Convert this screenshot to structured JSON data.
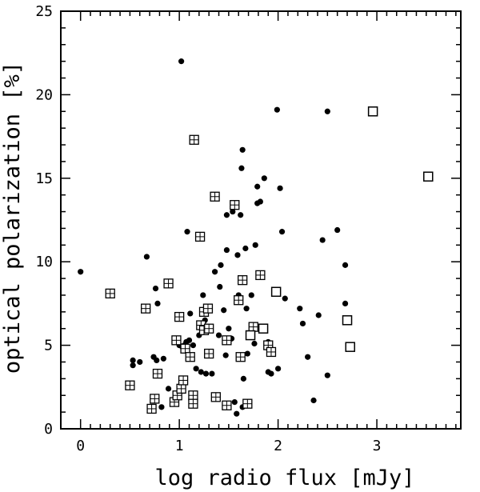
{
  "chart_data": {
    "type": "scatter",
    "title": "",
    "xlabel": "log radio flux [mJy]",
    "ylabel": "optical polarization [%]",
    "xlim": [
      -0.2,
      3.85
    ],
    "ylim": [
      0,
      25
    ],
    "xticks": [
      0,
      1,
      2,
      3
    ],
    "yticks": [
      0,
      5,
      10,
      15,
      20,
      25
    ],
    "grid": false,
    "legend": "none",
    "series": [
      {
        "marker": "filled-circle",
        "color": "#000000",
        "points": [
          [
            0.0,
            9.4
          ],
          [
            0.53,
            4.1
          ],
          [
            0.53,
            3.8
          ],
          [
            0.6,
            4.0
          ],
          [
            0.67,
            10.3
          ],
          [
            0.74,
            4.3
          ],
          [
            0.76,
            8.4
          ],
          [
            0.77,
            4.1
          ],
          [
            0.78,
            7.5
          ],
          [
            0.82,
            1.3
          ],
          [
            0.84,
            4.2
          ],
          [
            0.89,
            2.4
          ],
          [
            0.97,
            1.5
          ],
          [
            1.0,
            5.0
          ],
          [
            1.02,
            22.0
          ],
          [
            1.03,
            4.9
          ],
          [
            1.05,
            5.0
          ],
          [
            1.07,
            5.2
          ],
          [
            1.08,
            11.8
          ],
          [
            1.1,
            5.3
          ],
          [
            1.11,
            6.9
          ],
          [
            1.14,
            5.0
          ],
          [
            1.17,
            3.6
          ],
          [
            1.2,
            5.6
          ],
          [
            1.22,
            3.4
          ],
          [
            1.24,
            8.0
          ],
          [
            1.26,
            6.5
          ],
          [
            1.27,
            3.3
          ],
          [
            1.29,
            6.1
          ],
          [
            1.31,
            4.6
          ],
          [
            1.33,
            3.3
          ],
          [
            1.36,
            9.4
          ],
          [
            1.4,
            5.6
          ],
          [
            1.41,
            8.5
          ],
          [
            1.42,
            9.8
          ],
          [
            1.45,
            7.1
          ],
          [
            1.47,
            4.4
          ],
          [
            1.48,
            10.7
          ],
          [
            1.48,
            12.8
          ],
          [
            1.5,
            6.0
          ],
          [
            1.53,
            5.4
          ],
          [
            1.54,
            13.0
          ],
          [
            1.56,
            1.6
          ],
          [
            1.58,
            0.9
          ],
          [
            1.59,
            10.4
          ],
          [
            1.6,
            8.0
          ],
          [
            1.62,
            12.8
          ],
          [
            1.63,
            15.6
          ],
          [
            1.64,
            16.7
          ],
          [
            1.64,
            1.3
          ],
          [
            1.65,
            3.0
          ],
          [
            1.67,
            10.8
          ],
          [
            1.68,
            7.2
          ],
          [
            1.69,
            4.5
          ],
          [
            1.7,
            1.4
          ],
          [
            1.73,
            8.0
          ],
          [
            1.76,
            5.1
          ],
          [
            1.77,
            11.0
          ],
          [
            1.79,
            14.5
          ],
          [
            1.79,
            13.5
          ],
          [
            1.82,
            13.6
          ],
          [
            1.86,
            15.0
          ],
          [
            1.9,
            3.4
          ],
          [
            1.9,
            5.2
          ],
          [
            1.93,
            3.3
          ],
          [
            1.99,
            19.1
          ],
          [
            2.0,
            3.6
          ],
          [
            2.02,
            14.4
          ],
          [
            2.04,
            11.8
          ],
          [
            2.07,
            7.8
          ],
          [
            2.22,
            7.2
          ],
          [
            2.25,
            6.3
          ],
          [
            2.3,
            4.3
          ],
          [
            2.36,
            1.7
          ],
          [
            2.41,
            6.8
          ],
          [
            2.45,
            11.3
          ],
          [
            2.5,
            19.0
          ],
          [
            2.5,
            3.2
          ],
          [
            2.6,
            11.9
          ],
          [
            2.68,
            9.8
          ],
          [
            2.68,
            7.5
          ]
        ]
      },
      {
        "marker": "crossed-square",
        "color": "#000000",
        "points": [
          [
            0.3,
            8.1
          ],
          [
            0.5,
            2.6
          ],
          [
            0.66,
            7.2
          ],
          [
            0.72,
            1.2
          ],
          [
            0.75,
            1.8
          ],
          [
            0.78,
            3.3
          ],
          [
            0.89,
            8.7
          ],
          [
            0.95,
            1.6
          ],
          [
            0.97,
            5.3
          ],
          [
            0.98,
            2.0
          ],
          [
            1.0,
            6.7
          ],
          [
            1.02,
            2.4
          ],
          [
            1.04,
            2.9
          ],
          [
            1.06,
            4.8
          ],
          [
            1.11,
            4.3
          ],
          [
            1.14,
            2.0
          ],
          [
            1.14,
            1.5
          ],
          [
            1.15,
            17.3
          ],
          [
            1.21,
            11.5
          ],
          [
            1.22,
            6.2
          ],
          [
            1.25,
            7.0
          ],
          [
            1.25,
            5.9
          ],
          [
            1.29,
            7.2
          ],
          [
            1.3,
            4.5
          ],
          [
            1.3,
            6.0
          ],
          [
            1.36,
            13.9
          ],
          [
            1.37,
            1.9
          ],
          [
            1.48,
            5.3
          ],
          [
            1.48,
            1.4
          ],
          [
            1.56,
            13.4
          ],
          [
            1.6,
            7.7
          ],
          [
            1.62,
            4.3
          ],
          [
            1.64,
            8.9
          ],
          [
            1.69,
            1.5
          ],
          [
            1.75,
            6.1
          ],
          [
            1.82,
            9.2
          ],
          [
            1.9,
            5.0
          ],
          [
            1.93,
            4.6
          ]
        ]
      },
      {
        "marker": "open-square",
        "color": "#000000",
        "points": [
          [
            1.72,
            5.6
          ],
          [
            1.85,
            6.0
          ],
          [
            1.98,
            8.2
          ],
          [
            2.7,
            6.5
          ],
          [
            2.73,
            4.9
          ],
          [
            2.96,
            19.0
          ],
          [
            3.52,
            15.1
          ]
        ]
      }
    ]
  }
}
